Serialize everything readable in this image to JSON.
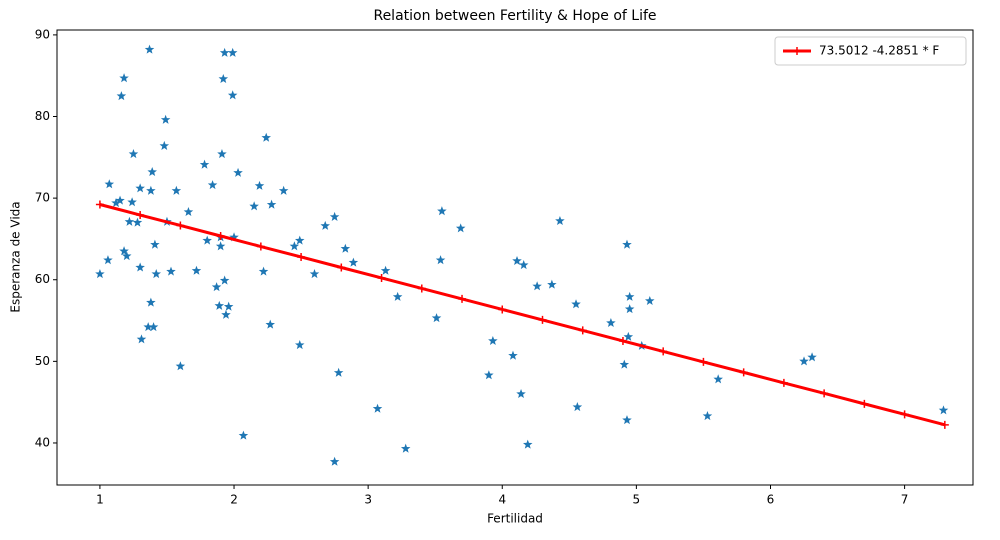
{
  "chart_data": {
    "type": "scatter",
    "title": "Relation between Fertility & Hope of Life",
    "x_label": "Fertilidad",
    "y_label": "Esperanza de Vida",
    "color": "#1f77b4",
    "x": [
      1.0,
      1.06,
      1.07,
      1.12,
      1.15,
      1.16,
      1.18,
      1.18,
      1.2,
      1.22,
      1.24,
      1.25,
      1.28,
      1.3,
      1.3,
      1.31,
      1.36,
      1.37,
      1.38,
      1.39,
      1.38,
      1.4,
      1.41,
      1.42,
      1.48,
      1.49,
      1.5,
      1.53,
      1.57,
      1.6,
      1.66,
      1.72,
      1.78,
      1.8,
      1.84,
      1.87,
      1.89,
      1.9,
      1.9,
      1.91,
      1.92,
      1.93,
      1.93,
      1.94,
      1.96,
      1.99,
      1.99,
      2.0,
      2.03,
      2.07,
      2.15,
      2.19,
      2.22,
      2.24,
      2.27,
      2.28,
      2.37,
      2.45,
      2.49,
      2.49,
      2.6,
      2.68,
      2.75,
      2.75,
      2.78,
      2.83,
      2.89,
      3.07,
      3.13,
      3.22,
      3.28,
      3.51,
      3.54,
      3.55,
      3.69,
      3.9,
      3.93,
      4.08,
      4.11,
      4.14,
      4.16,
      4.19,
      4.26,
      4.37,
      4.43,
      4.55,
      4.56,
      4.81,
      4.91,
      4.95,
      4.95,
      4.93,
      4.93,
      4.94,
      5.04,
      5.1,
      5.53,
      5.61,
      6.25,
      6.31,
      7.29
    ],
    "values": [
      60.7,
      62.4,
      71.7,
      69.4,
      69.7,
      82.5,
      84.7,
      63.5,
      62.9,
      67.1,
      69.5,
      75.4,
      67.0,
      71.2,
      61.5,
      52.7,
      54.2,
      88.2,
      70.9,
      73.2,
      57.2,
      54.2,
      64.3,
      60.7,
      76.4,
      79.6,
      67.1,
      61.0,
      70.9,
      49.4,
      68.3,
      61.1,
      74.1,
      64.8,
      71.6,
      59.1,
      56.8,
      65.2,
      64.1,
      75.4,
      84.6,
      87.8,
      59.9,
      55.7,
      56.7,
      87.8,
      82.6,
      65.2,
      73.1,
      40.9,
      69.0,
      71.5,
      61.0,
      77.4,
      54.5,
      69.2,
      70.9,
      64.1,
      64.8,
      52.0,
      60.7,
      66.6,
      67.7,
      37.7,
      48.6,
      63.8,
      62.1,
      44.2,
      61.1,
      57.9,
      39.3,
      55.3,
      62.4,
      68.4,
      66.3,
      48.3,
      52.5,
      50.7,
      62.3,
      46.0,
      61.8,
      39.8,
      59.2,
      59.4,
      67.2,
      57.0,
      44.4,
      54.7,
      49.6,
      57.9,
      56.4,
      42.8,
      64.3,
      53.0,
      51.9,
      57.4,
      43.3,
      47.8,
      50.0,
      50.5,
      44.0
    ],
    "fit_line": {
      "name": "73.5012 -4.2851 * F",
      "color": "#ff0000",
      "x": [
        1.0,
        1.3,
        1.6,
        1.9,
        2.2,
        2.5,
        2.8,
        3.1,
        3.4,
        3.7,
        4.0,
        4.3,
        4.6,
        4.9,
        5.2,
        5.5,
        5.8,
        6.1,
        6.4,
        6.7,
        7.0,
        7.3
      ],
      "values": [
        69.22,
        67.93,
        66.65,
        65.36,
        64.07,
        62.79,
        61.5,
        60.22,
        58.93,
        57.65,
        56.36,
        55.08,
        53.79,
        52.5,
        51.22,
        49.93,
        48.65,
        47.36,
        46.08,
        44.79,
        43.51,
        42.22
      ]
    },
    "xlim": [
      0.68,
      7.51
    ],
    "ylim": [
      34.85,
      90.6
    ],
    "xticks": [
      1,
      2,
      3,
      4,
      5,
      6,
      7
    ],
    "yticks": [
      40,
      50,
      60,
      70,
      80,
      90
    ],
    "legend": "upper right"
  }
}
